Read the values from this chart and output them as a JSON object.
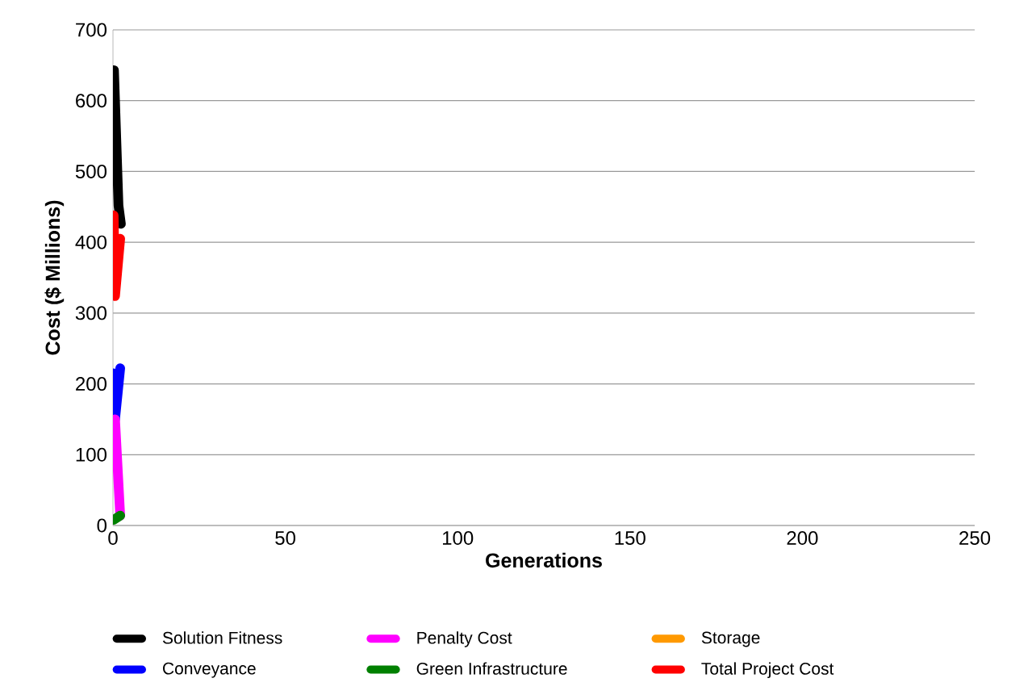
{
  "chart_data": {
    "type": "line",
    "xlabel": "Generations",
    "ylabel": "Cost ($ Millions)",
    "xlim": [
      0,
      250
    ],
    "xticks": [
      0,
      50,
      100,
      150,
      200,
      250
    ],
    "ylim": [
      0,
      700
    ],
    "yticks": [
      0,
      100,
      200,
      300,
      400,
      500,
      600,
      700
    ],
    "grid": "y",
    "legend": "bottom",
    "marker": "none",
    "line_style": "solid",
    "series": [
      {
        "name": "Solution Fitness",
        "color": "#000000",
        "x": [
          0.3,
          1.6,
          2.3
        ],
        "values": [
          643,
          452,
          426
        ]
      },
      {
        "name": "Conveyance",
        "color": "#0000ff",
        "x": [
          0.2,
          0.6,
          2.1
        ],
        "values": [
          215,
          150,
          222
        ]
      },
      {
        "name": "Penalty Cost",
        "color": "#ff00ff",
        "x": [
          0.6,
          2.1
        ],
        "values": [
          150,
          14
        ]
      },
      {
        "name": "Green Infrastructure",
        "color": "#008000",
        "x": [
          0.2,
          2.1
        ],
        "values": [
          8,
          14
        ]
      },
      {
        "name": "Storage",
        "color": "#ff9900",
        "values": [
          null
        ]
      },
      {
        "name": "Total Project Cost",
        "color": "#ff0000",
        "x": [
          0.2,
          0.6,
          2.1
        ],
        "values": [
          438,
          324,
          405
        ]
      }
    ]
  }
}
